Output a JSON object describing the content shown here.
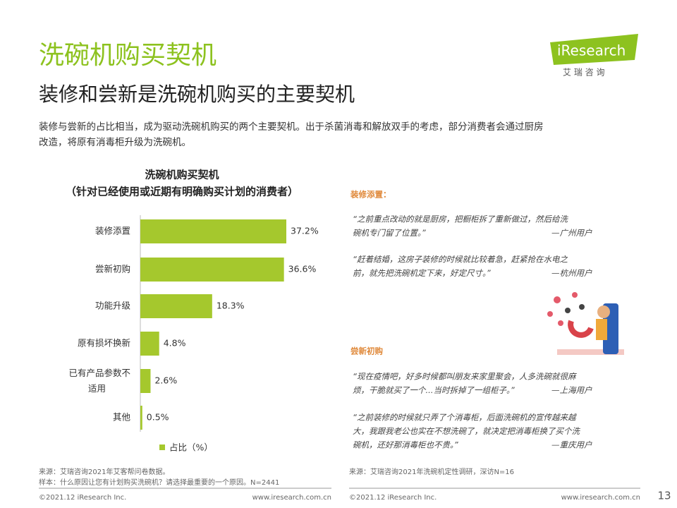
{
  "header": {
    "title": "洗碗机购买契机",
    "subtitle": "装修和尝新是洗碗机购买的主要契机",
    "description": [
      "装修与尝新的占比相当，成为驱动洗碗机购买的两个主要契机。出于杀菌消毒和解放双手的考虑，部分消费者会通过厨房",
      "改造，将原有消毒柜升级为洗碗机。"
    ]
  },
  "logo": {
    "brand": "iResearch",
    "chinese": "艾 瑞 咨 询"
  },
  "chart_data": {
    "type": "bar",
    "orientation": "horizontal",
    "title": [
      "洗碗机购买契机",
      "（针对已经使用或近期有明确购买计划的消费者）"
    ],
    "categories": [
      "装修添置",
      "尝新初购",
      "功能升级",
      "原有损坏换新",
      "已有产品参数不适用",
      "其他"
    ],
    "series": [
      {
        "name": "占比（%）",
        "color": "#a5c82d",
        "values": [
          37.2,
          36.6,
          18.3,
          4.8,
          2.6,
          0.5
        ],
        "value_labels": [
          "37.2%",
          "36.6%",
          "18.3%",
          "4.8%",
          "2.6%",
          "0.5%"
        ]
      }
    ]
  },
  "sections": [
    {
      "heading": "装修添置：",
      "quotes": [
        {
          "lines": [
            "“之前重点改动的就是厨房，把橱柜拆了重新做过，然后给洗",
            "碗机专门留了位置。”"
          ],
          "author": "—广州用户"
        },
        {
          "lines": [
            "“赶着结婚，这房子装修的时候就比较着急，赶紧抢在水电之",
            "前，就先把洗碗机定下来，好定尺寸。”"
          ],
          "author": "—杭州用户"
        }
      ]
    },
    {
      "heading": "尝新初购",
      "quotes": [
        {
          "lines": [
            "“现在疫情吧，好多时候都叫朋友来家里聚会，人多洗碗就很麻",
            "烦，干脆就买了一个...当时拆掉了一组柜子。”"
          ],
          "author": "—上海用户"
        },
        {
          "lines": [
            "“之前装修的时候就只弄了个消毒柜，后面洗碗机的宣传越来越",
            "大，我跟我老公也实在不想洗碗了，就决定把消毒柜换了买个洗",
            "碗机，还好那消毒柜也不贵。”"
          ],
          "author": "—重庆用户"
        }
      ]
    }
  ],
  "footer": {
    "left": {
      "source": [
        "来源：艾瑞咨询2021年艾客帮问卷数据。",
        "样本：什么原因让您有计划购买洗碗机？请选择最重要的一个原因。N=2441"
      ],
      "copyright": "©2021.12 iResearch Inc.",
      "website": "www.iresearch.com.cn"
    },
    "right": {
      "source": "来源：艾瑞咨询2021年洗碗机定性调研，深访N=16",
      "copyright": "©2021.12 iResearch Inc.",
      "website": "www.iresearch.com.cn"
    },
    "page": "13"
  }
}
